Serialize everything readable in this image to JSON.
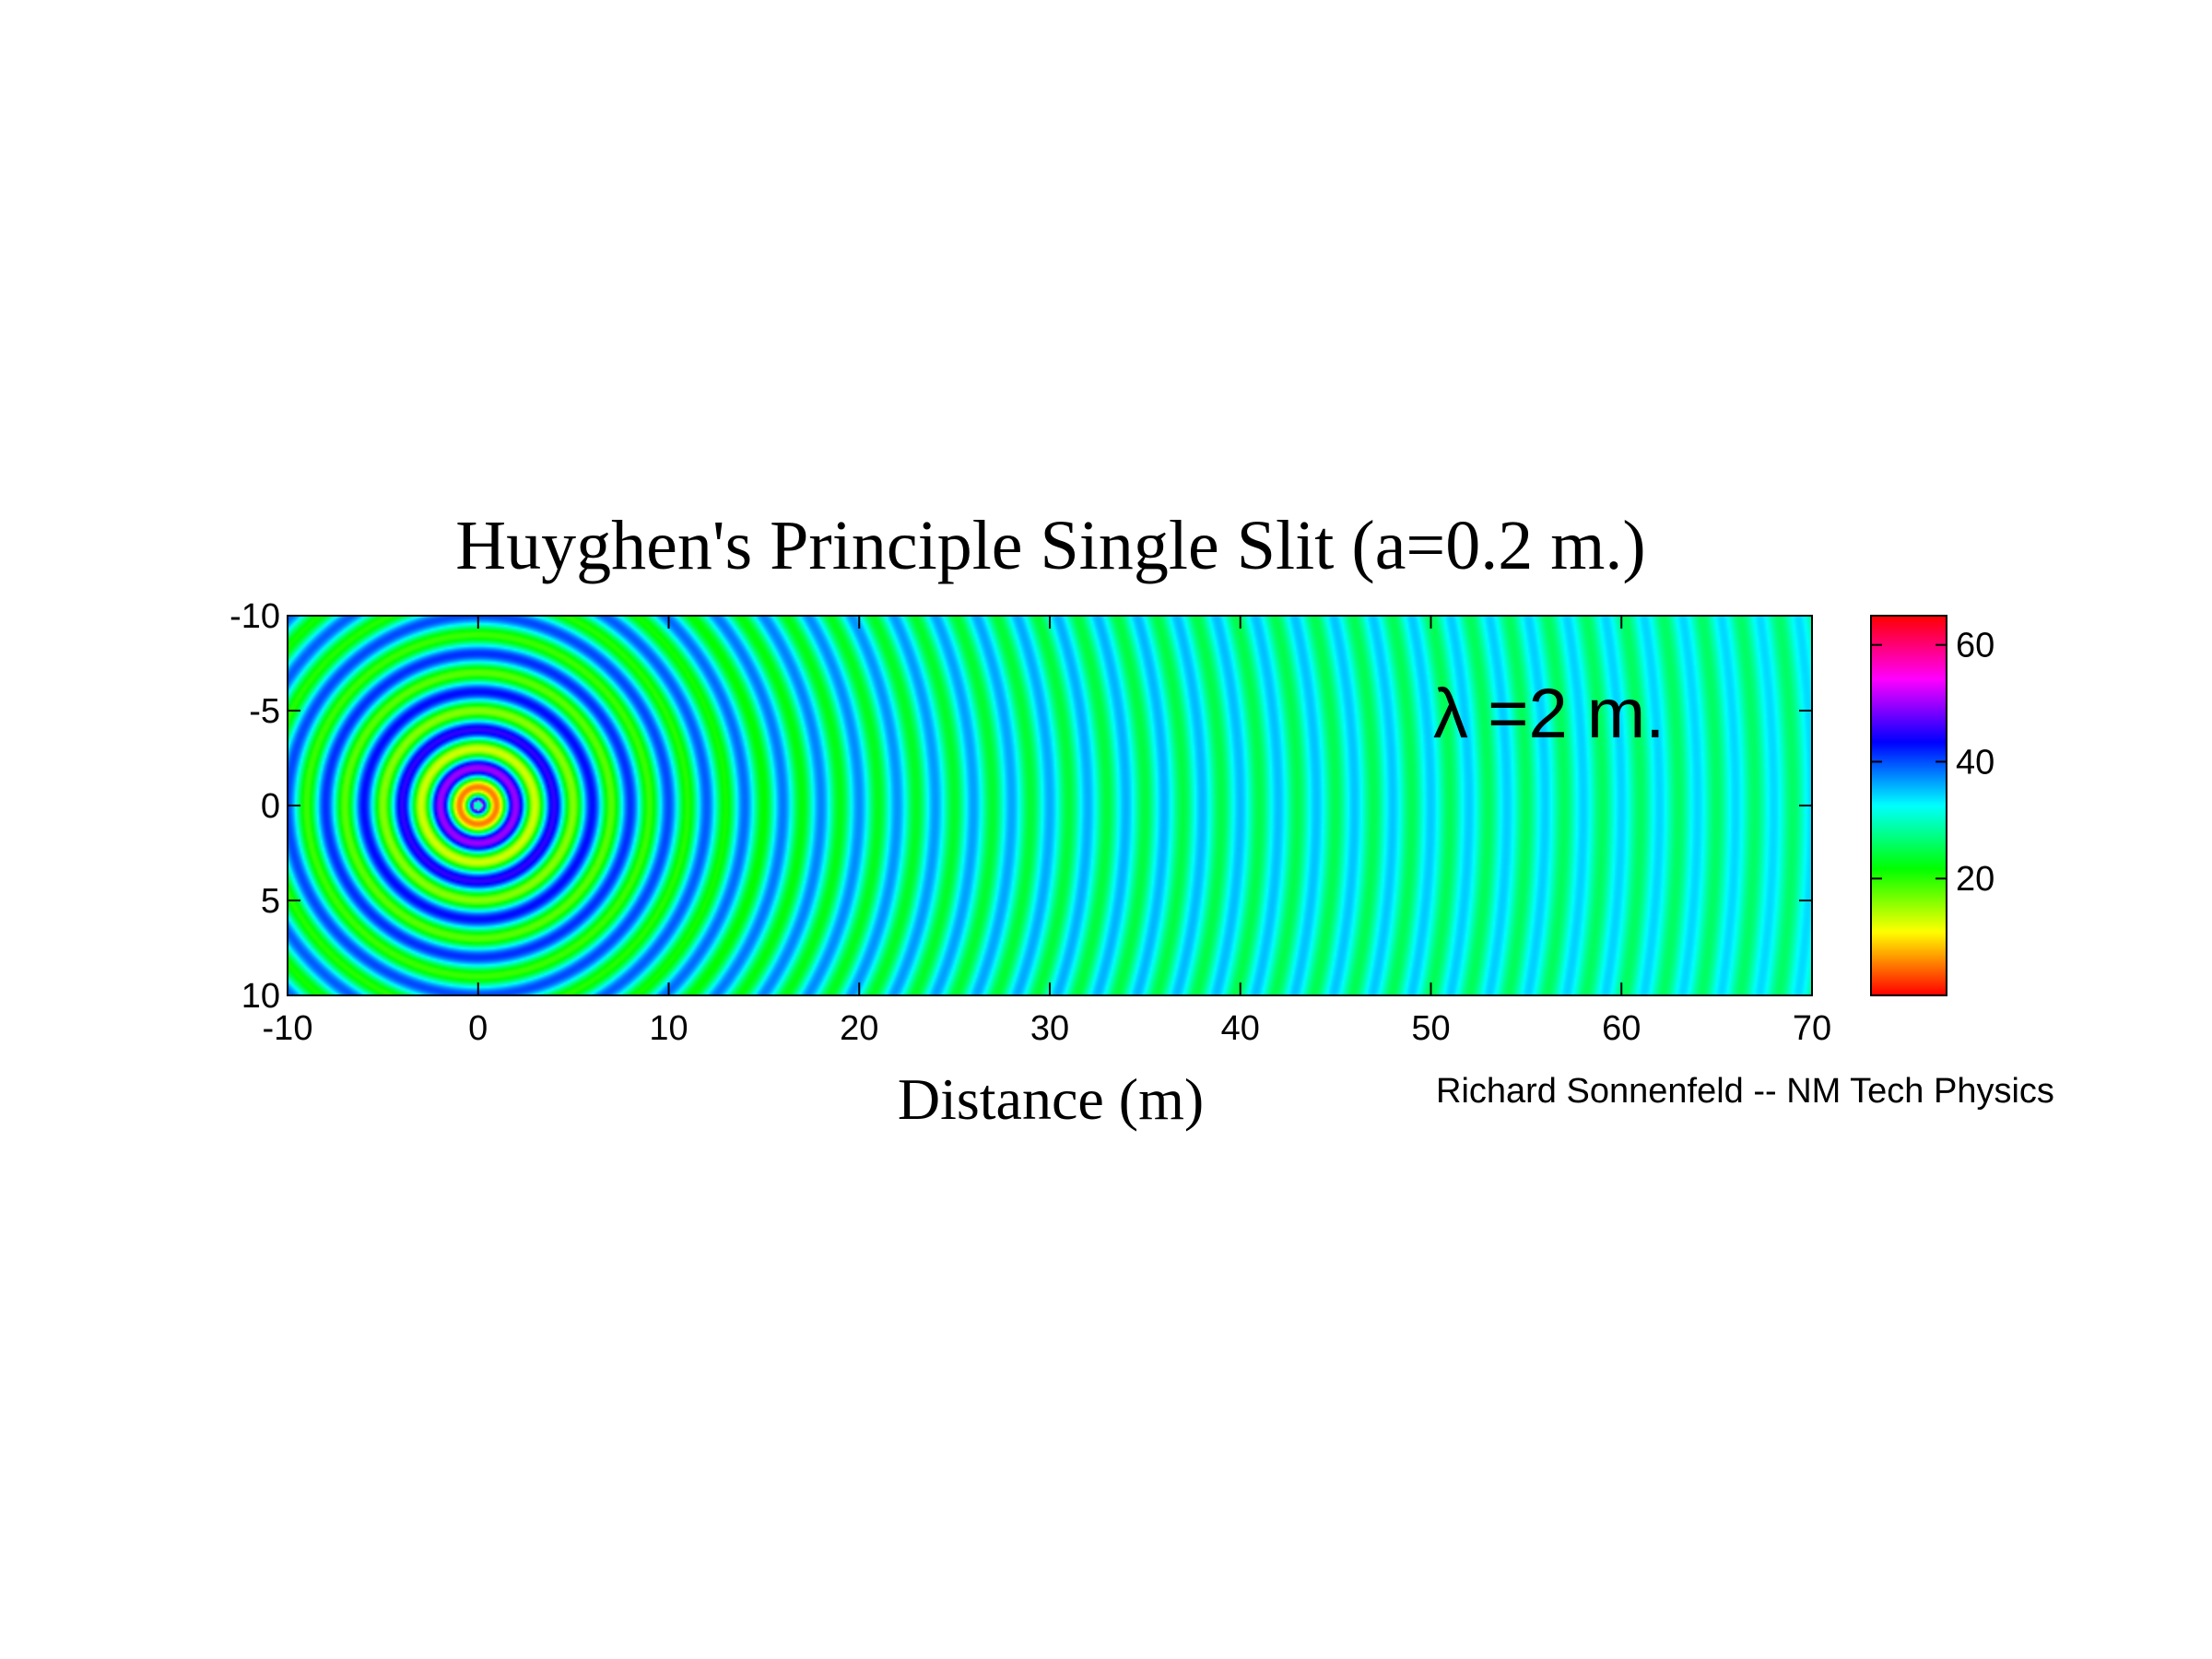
{
  "chart_data": {
    "type": "heatmap",
    "title": "Huyghen's Principle Single Slit (a=0.2 m.)",
    "xlabel": "Distance (m)",
    "ylabel": "",
    "xlim": [
      -10,
      70
    ],
    "ylim": [
      -10,
      10
    ],
    "y_axis_reversed": true,
    "x_ticks": [
      -10,
      0,
      10,
      20,
      30,
      40,
      50,
      60,
      70
    ],
    "y_ticks": [
      -10,
      -5,
      0,
      5,
      10
    ],
    "source": {
      "x": 0,
      "y": 0
    },
    "wavelength_m": 2,
    "slit_width_m": 0.2,
    "annotation": "λ =2 m.",
    "credit": "Richard Sonnenfeld -- NM Tech Physics",
    "colorbar": {
      "min": 0,
      "max": 65,
      "ticks": [
        20,
        40,
        60
      ],
      "colormap": "hsv"
    },
    "field_baseline": 30,
    "colors": {
      "background": "#ffffff",
      "axis": "#000000"
    }
  }
}
